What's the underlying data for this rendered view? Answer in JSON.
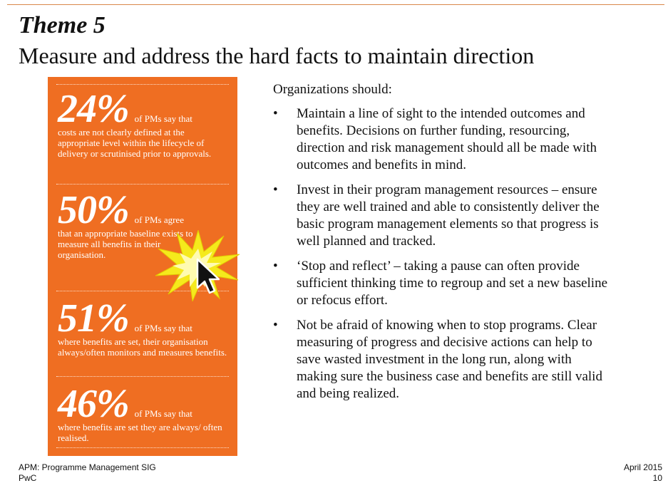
{
  "header": {
    "theme_label": "Theme 5",
    "title": "Measure and address the hard facts to maintain direction"
  },
  "stats": [
    {
      "percent": "24%",
      "lead": "of PMs say that",
      "text": "costs are not clearly defined at the appropriate level within the lifecycle of delivery or scrutinised prior to approvals."
    },
    {
      "percent": "50%",
      "lead": "of PMs agree",
      "text": "that an appropriate baseline exists to measure all benefits in their organisation."
    },
    {
      "percent": "51%",
      "lead": "of PMs say that",
      "text": "where benefits are set, their organisation always/often monitors and measures benefits."
    },
    {
      "percent": "46%",
      "lead": "of PMs say that",
      "text": "where benefits are set they are always/ often realised."
    }
  ],
  "content": {
    "intro": "Organizations should:",
    "bullet_char": "•",
    "bullets": [
      "Maintain a line of sight to the intended outcomes and benefits. Decisions on further funding, resourcing, direction and risk management should all be made with outcomes and benefits in mind.",
      "Invest in their program management resources – ensure they are well trained and able to consistently deliver the basic program management elements so that progress is well planned and tracked.",
      "‘Stop and reflect’ – taking a pause can often provide sufficient thinking time to regroup and set a new baseline or refocus effort.",
      "Not be afraid of knowing when to stop programs. Clear measuring of progress and decisive actions can help to save wasted investment in the long run, along with making sure the business case and benefits are still valid and being realized."
    ]
  },
  "footer": {
    "source": "APM: Programme Management SIG",
    "brand": "PwC",
    "date": "April 2015",
    "page_number": "10"
  },
  "colors": {
    "panel_orange": "#ef6e22",
    "accent_rule": "#d9874a",
    "burst_yellow": "#f5ea1c"
  },
  "icons": {
    "burst": "starburst-icon",
    "cursor": "mouse-pointer-icon"
  }
}
